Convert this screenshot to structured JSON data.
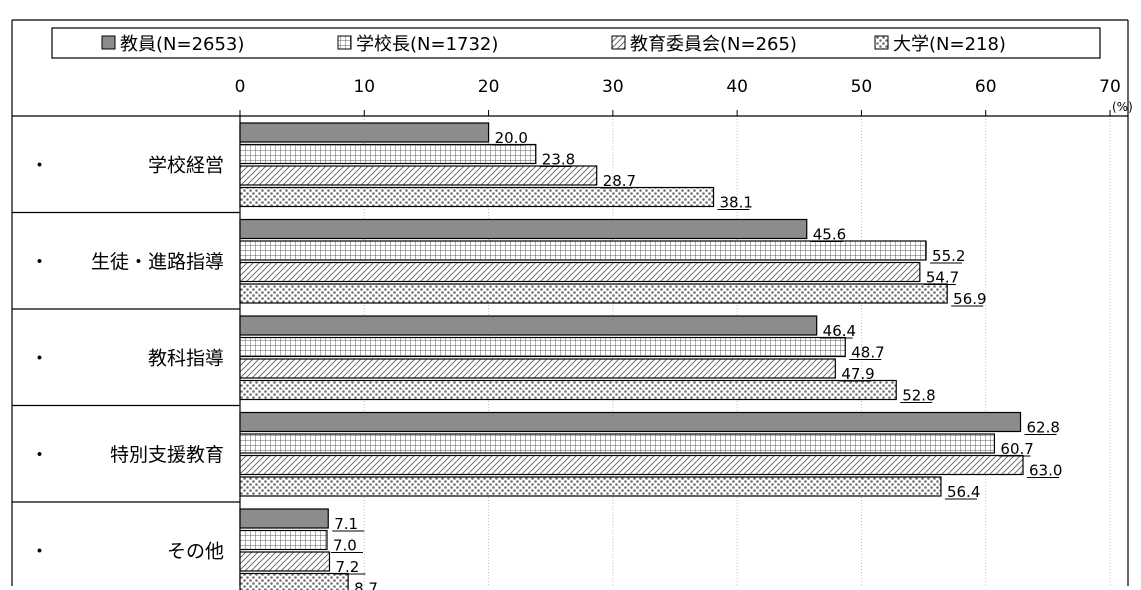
{
  "chart_data": {
    "type": "bar",
    "orientation": "horizontal",
    "categories": [
      "学校経営",
      "生徒・進路指導",
      "教科指導",
      "特別支援教育",
      "その他"
    ],
    "category_bullet": "・",
    "series": [
      {
        "name": "教員(N=2653)",
        "values": [
          20.0,
          45.6,
          46.4,
          62.8,
          7.1
        ],
        "pattern": "solid-gray"
      },
      {
        "name": "学校長(N=1732)",
        "values": [
          23.8,
          55.2,
          48.7,
          60.7,
          7.0
        ],
        "pattern": "grid"
      },
      {
        "name": "教育委員会(N=265)",
        "values": [
          28.7,
          54.7,
          47.9,
          63.0,
          7.2
        ],
        "pattern": "diagonal"
      },
      {
        "name": "大学(N=218)",
        "values": [
          38.1,
          56.9,
          52.8,
          56.4,
          8.7
        ],
        "pattern": "dots"
      }
    ],
    "value_labels": [
      [
        "20.0",
        "45.6",
        "46.4",
        "62.8",
        "7.1"
      ],
      [
        "23.8",
        "55.2",
        "48.7",
        "60.7",
        "7.0"
      ],
      [
        "28.7",
        "54.7",
        "47.9",
        "63.0",
        "7.2"
      ],
      [
        "38.1",
        "56.9",
        "52.8",
        "56.4",
        "8.7"
      ]
    ],
    "xlim": [
      0,
      70
    ],
    "xticks": [
      0,
      10,
      20,
      30,
      40,
      50,
      60,
      70
    ],
    "xtick_labels": [
      "0",
      "10",
      "20",
      "30",
      "40",
      "50",
      "60",
      "70"
    ],
    "unit": "(%)",
    "legend_position": "top",
    "grid": "vertical",
    "colors": {
      "solid": "#8c8c8c",
      "border": "#000000",
      "grid": "#c0c0c0"
    }
  }
}
